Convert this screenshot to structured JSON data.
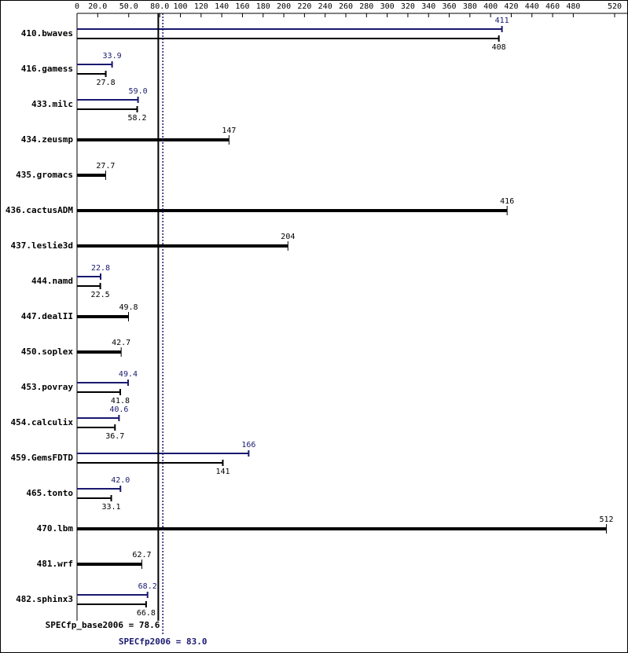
{
  "chart_data": {
    "type": "spec-hbar",
    "categories": [
      "410.bwaves",
      "416.gamess",
      "433.milc",
      "434.zeusmp",
      "435.gromacs",
      "436.cactusADM",
      "437.leslie3d",
      "444.namd",
      "447.dealII",
      "450.soplex",
      "453.povray",
      "454.calculix",
      "459.GemsFDTD",
      "465.tonto",
      "470.lbm",
      "481.wrf",
      "482.sphinx3"
    ],
    "series": [
      {
        "color": "#000000",
        "values": [
          408,
          27.8,
          58.2,
          147,
          27.7,
          416,
          204,
          22.5,
          49.8,
          42.7,
          41.8,
          36.7,
          141,
          33.1,
          512,
          62.7,
          66.8
        ],
        "value_labels": [
          "408",
          "27.8",
          "58.2",
          "147",
          "27.7",
          "416",
          "204",
          "22.5",
          "49.8",
          "42.7",
          "41.8",
          "36.7",
          "141",
          "33.1",
          "512",
          "62.7",
          "66.8"
        ]
      },
      {
        "color": "#191970",
        "values": [
          411,
          33.9,
          59.0,
          null,
          null,
          null,
          null,
          22.8,
          null,
          null,
          49.4,
          40.6,
          166,
          42.0,
          null,
          null,
          68.2
        ],
        "value_labels": [
          "411",
          "33.9",
          "59.0",
          null,
          null,
          null,
          null,
          "22.8",
          null,
          null,
          "49.4",
          "40.6",
          "166",
          "42.0",
          null,
          null,
          "68.2"
        ]
      }
    ],
    "xlim": [
      0,
      520
    ],
    "xticks": [
      0,
      {
        "value": 20,
        "label": "20.0"
      },
      {
        "value": 50,
        "label": "50.0"
      },
      {
        "value": 80,
        "label": "80.0"
      },
      100,
      120,
      140,
      160,
      180,
      200,
      220,
      240,
      260,
      280,
      300,
      320,
      340,
      360,
      380,
      400,
      420,
      440,
      460,
      480,
      520
    ],
    "summary": [
      {
        "label": "SPECfp_base2006 = 78.6",
        "value": 78.6,
        "color": "#000000"
      },
      {
        "label": "SPECfp2006 = 83.0",
        "value": 83.0,
        "color": "#191970"
      }
    ]
  }
}
